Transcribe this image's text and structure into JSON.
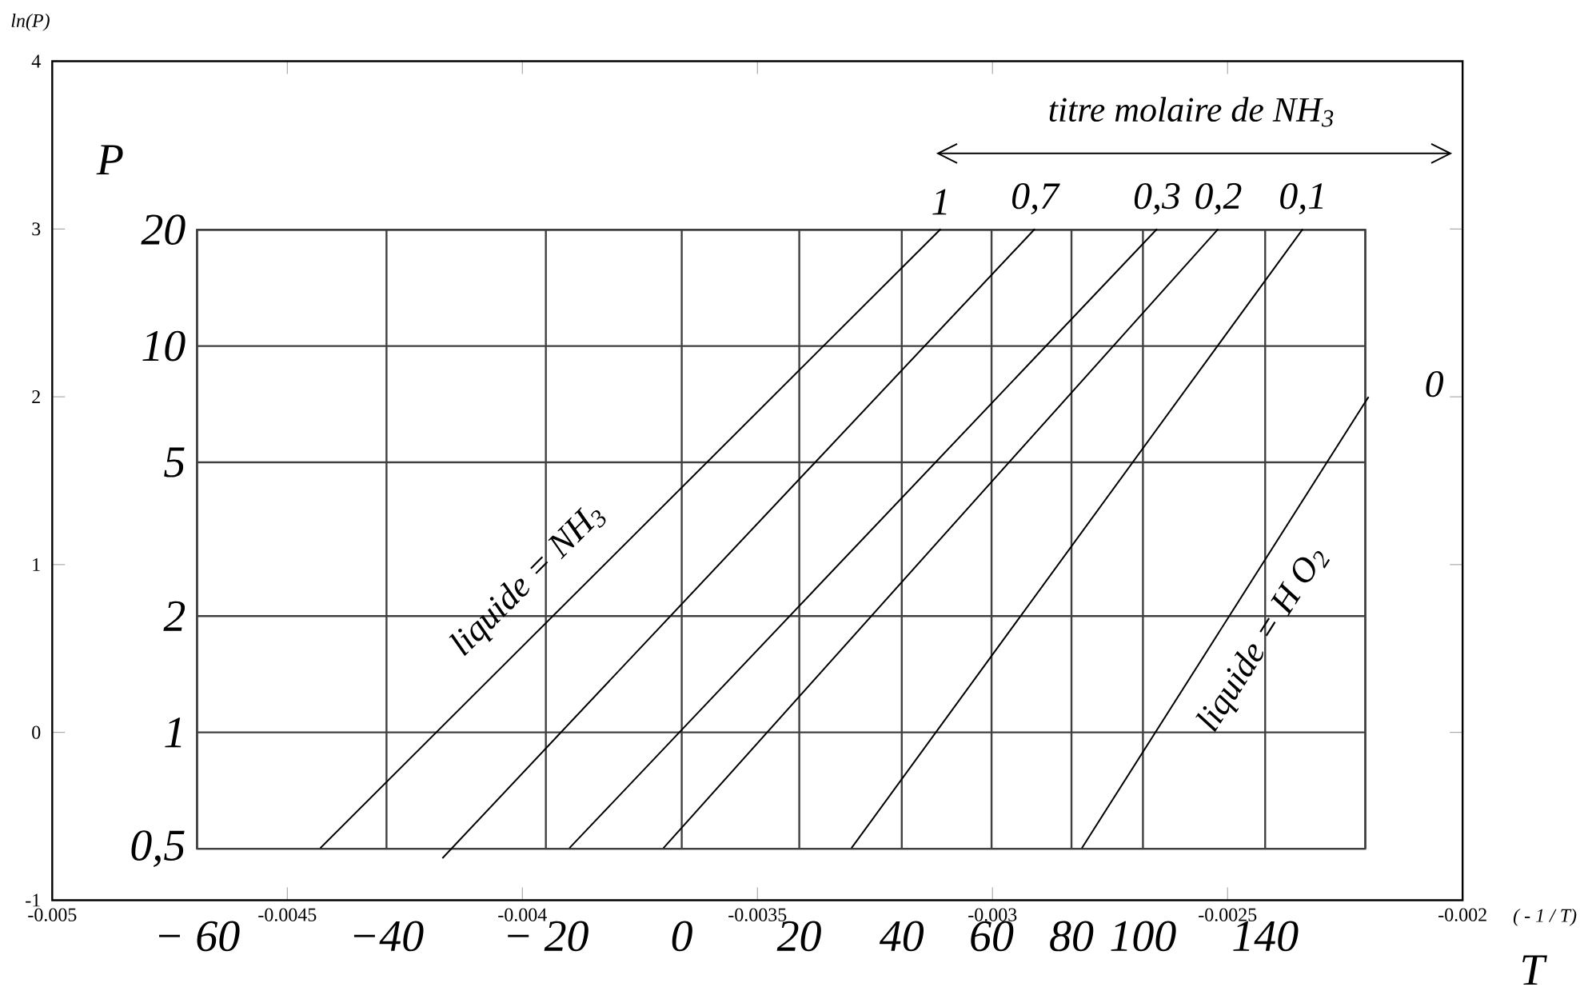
{
  "chart_data": {
    "type": "line",
    "xlabel": "( - 1 / T)",
    "ylabel": "ln(P)",
    "y2label": "P",
    "xlim": [
      -0.005,
      -0.002
    ],
    "ylim": [
      -1,
      4
    ],
    "xticks": [
      -0.005,
      -0.0045,
      -0.004,
      -0.0035,
      -0.003,
      -0.0025,
      -0.002
    ],
    "yticks": [
      -1,
      0,
      1,
      2,
      3,
      4
    ],
    "y2lim": [
      0.5,
      20
    ],
    "log": "y2",
    "y2ticks": [
      {
        "value": 0.5,
        "label": "0,5"
      },
      1,
      2,
      5,
      10,
      20
    ],
    "grid": "y",
    "line_style": "solid",
    "ref_lines": [
      {
        "axis": "x",
        "value": -0.004692
      },
      {
        "axis": "x",
        "value": -0.004289
      },
      {
        "axis": "x",
        "value": -0.00395
      },
      {
        "axis": "x",
        "value": -0.003661
      },
      {
        "axis": "x",
        "value": -0.003411
      },
      {
        "axis": "x",
        "value": -0.003193
      },
      {
        "axis": "x",
        "value": -0.003002
      },
      {
        "axis": "x",
        "value": -0.002832
      },
      {
        "axis": "x",
        "value": -0.00268
      },
      {
        "axis": "x",
        "value": -0.00242
      },
      {
        "axis": "x",
        "value": -0.002207
      }
    ],
    "series": [
      {
        "name": "1",
        "color": "#000000",
        "x": [
          -0.00443,
          -0.00311
        ],
        "values": [
          -0.69,
          3.0
        ]
      },
      {
        "name": "0,7",
        "color": "#000000",
        "x": [
          -0.00417,
          -0.00291
        ],
        "values": [
          -0.75,
          3.0
        ]
      },
      {
        "name": "0,3",
        "color": "#000000",
        "x": [
          -0.0039,
          -0.00265
        ],
        "values": [
          -0.69,
          3.0
        ]
      },
      {
        "name": "0,2",
        "color": "#000000",
        "x": [
          -0.0037,
          -0.00252
        ],
        "values": [
          -0.69,
          3.0
        ]
      },
      {
        "name": "0,1",
        "color": "#000000",
        "x": [
          -0.0033,
          -0.00234
        ],
        "values": [
          -0.69,
          3.0
        ]
      },
      {
        "name": "0",
        "color": "#000000",
        "x": [
          -0.00281,
          -0.0022
        ],
        "values": [
          -0.69,
          2.0
        ]
      }
    ],
    "annotations": [
      "titre molaire de NH$_{3}$",
      "liquide =  NH$_{3}$",
      "liquide = H O$_{2}$",
      "T",
      "− 60",
      "−40",
      "− 20",
      "0",
      "20",
      "40",
      "60",
      "80",
      "100",
      "140"
    ]
  }
}
